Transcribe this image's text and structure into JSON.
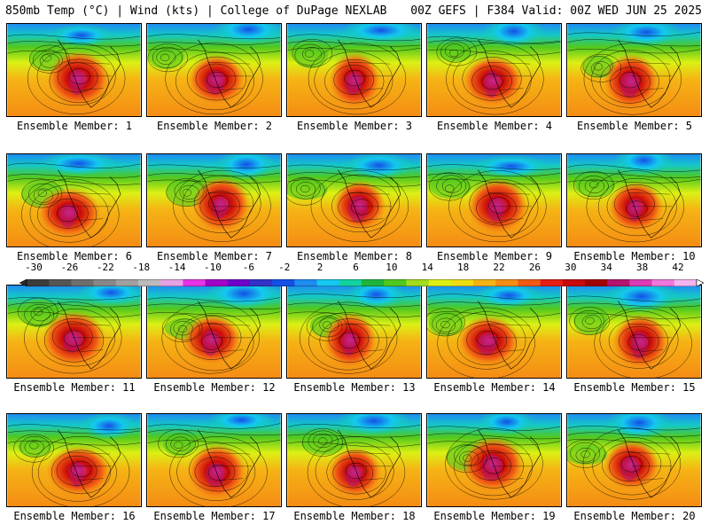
{
  "header": {
    "left": "850mb Temp (°C) | Wind (kts) | College of DuPage NEXLAB",
    "right": "00Z GEFS | F384 Valid: 00Z WED JUN 25 2025"
  },
  "panels": [
    {
      "label": "Ensemble Member: 1"
    },
    {
      "label": "Ensemble Member: 2"
    },
    {
      "label": "Ensemble Member: 3"
    },
    {
      "label": "Ensemble Member: 4"
    },
    {
      "label": "Ensemble Member: 5"
    },
    {
      "label": "Ensemble Member: 6"
    },
    {
      "label": "Ensemble Member: 7"
    },
    {
      "label": "Ensemble Member: 8"
    },
    {
      "label": "Ensemble Member: 9"
    },
    {
      "label": "Ensemble Member: 10"
    },
    {
      "label": "Ensemble Member: 11"
    },
    {
      "label": "Ensemble Member: 12"
    },
    {
      "label": "Ensemble Member: 13"
    },
    {
      "label": "Ensemble Member: 14"
    },
    {
      "label": "Ensemble Member: 15"
    },
    {
      "label": "Ensemble Member: 16"
    },
    {
      "label": "Ensemble Member: 17"
    },
    {
      "label": "Ensemble Member: 18"
    },
    {
      "label": "Ensemble Member: 19"
    },
    {
      "label": "Ensemble Member: 20"
    }
  ],
  "colorbar": {
    "ticks": [
      "-30",
      "-26",
      "-22",
      "-18",
      "-14",
      "-10",
      "-6",
      "-2",
      "2",
      "6",
      "10",
      "14",
      "18",
      "22",
      "26",
      "30",
      "34",
      "38",
      "42"
    ],
    "colors": [
      "#3c3c3c",
      "#555555",
      "#6e6e6e",
      "#878787",
      "#a0a0a0",
      "#bbbbbb",
      "#e6a0e6",
      "#e632e6",
      "#a000c8",
      "#6e00c8",
      "#3232c8",
      "#1450e6",
      "#1e8cf0",
      "#14c8f0",
      "#14d2a0",
      "#1eb43c",
      "#50c81e",
      "#a0dc1e",
      "#dcf014",
      "#f0dc14",
      "#f5b414",
      "#f58c14",
      "#f05a14",
      "#e61e14",
      "#c80a0a",
      "#a00000",
      "#b4146e",
      "#dc3cb4",
      "#f078dc",
      "#f5b4f0"
    ]
  }
}
